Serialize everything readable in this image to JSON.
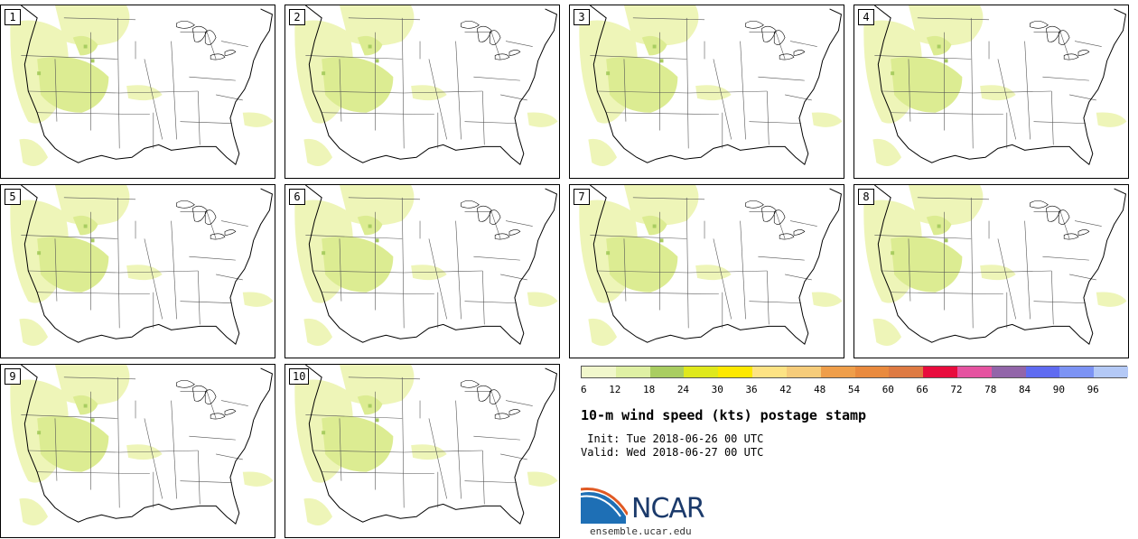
{
  "title": "10-m wind speed (kts) postage stamp",
  "init_text": " Init: Tue 2018-06-26 00 UTC",
  "valid_text": "Valid: Wed 2018-06-27 00 UTC",
  "logo_text": "NCAR",
  "site_url": "ensemble.ucar.edu",
  "members": [
    "1",
    "2",
    "3",
    "4",
    "5",
    "6",
    "7",
    "8",
    "9",
    "10"
  ],
  "legend": {
    "ticks": [
      "6",
      "12",
      "18",
      "24",
      "30",
      "36",
      "42",
      "48",
      "54",
      "60",
      "66",
      "72",
      "78",
      "84",
      "90",
      "96"
    ],
    "colors": [
      "#f1f7cc",
      "#dff0a4",
      "#a9cd61",
      "#dfe81c",
      "#fde800",
      "#fde384",
      "#f6cc7a",
      "#ef9e4a",
      "#e98a3e",
      "#de7a42",
      "#e80c3d",
      "#e553a0",
      "#9265a9",
      "#5f6bf1",
      "#7c93f4",
      "#b4c9f6"
    ]
  },
  "colors": {
    "border": "#000000",
    "state_lines": "#555555",
    "wind_light": "#eef5b8",
    "wind_mid": "#dcec92",
    "wind_strong": "#a9cd61"
  }
}
